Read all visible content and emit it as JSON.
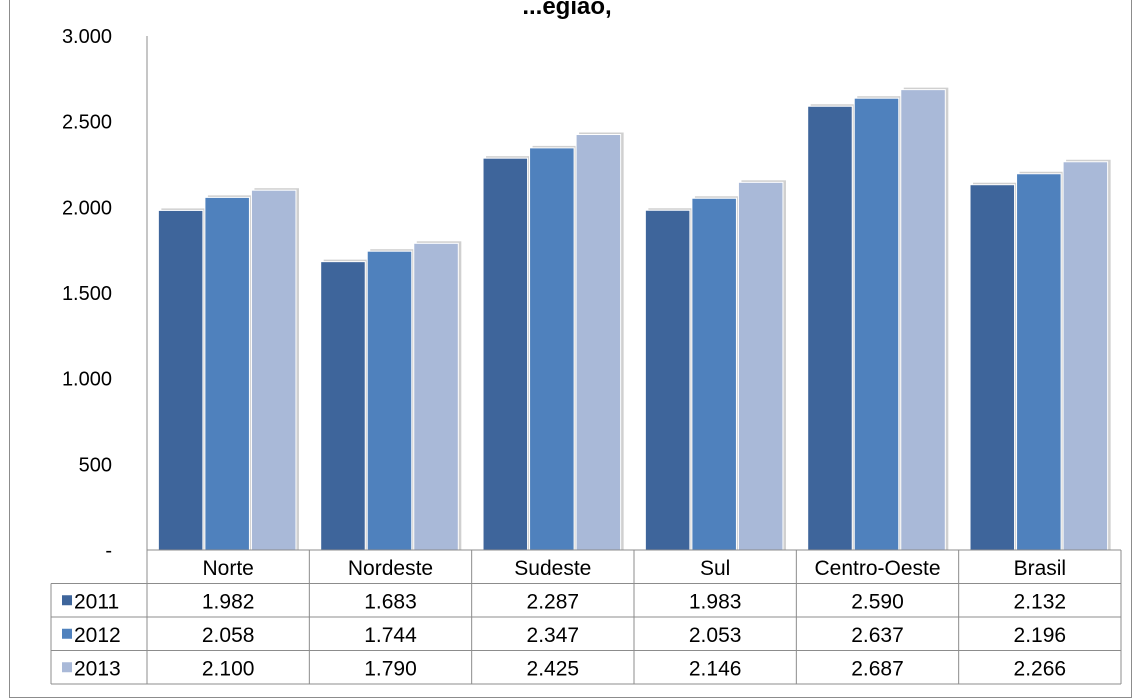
{
  "chart_data": {
    "type": "bar",
    "title": "...egião, ",
    "categories": [
      "Norte",
      "Nordeste",
      "Sudeste",
      "Sul",
      "Centro-Oeste",
      "Brasil"
    ],
    "series": [
      {
        "name": "2011",
        "color": "#3e659b",
        "values": [
          1982,
          1683,
          2287,
          1983,
          2590,
          2132
        ],
        "labels": [
          "1.982",
          "1.683",
          "2.287",
          "1.983",
          "2.590",
          "2.132"
        ]
      },
      {
        "name": "2012",
        "color": "#4f81bd",
        "values": [
          2058,
          1744,
          2347,
          2053,
          2637,
          2196
        ],
        "labels": [
          "2.058",
          "1.744",
          "2.347",
          "2.053",
          "2.637",
          "2.196"
        ]
      },
      {
        "name": "2013",
        "color": "#a9b9d8",
        "values": [
          2100,
          1790,
          2425,
          2146,
          2687,
          2266
        ],
        "labels": [
          "2.100",
          "1.790",
          "2.425",
          "2.146",
          "2.687",
          "2.266"
        ]
      }
    ],
    "ylim": [
      0,
      3000
    ],
    "yticks": [
      0,
      500,
      1000,
      1500,
      2000,
      2500,
      3000
    ],
    "ytick_labels": [
      "-",
      "500",
      "1.000",
      "1.500",
      "2.000",
      "2.500",
      "3.000"
    ],
    "grid": false,
    "legend": "data-table",
    "xlabel": "",
    "ylabel": ""
  }
}
